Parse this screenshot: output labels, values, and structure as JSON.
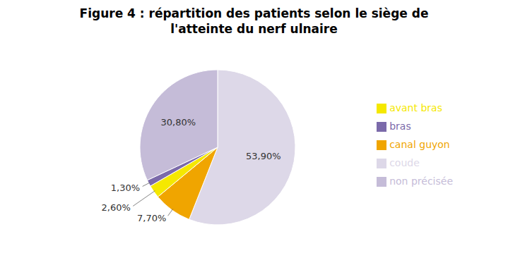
{
  "chart_data": {
    "type": "pie",
    "title": "Figure 4 : répartition des patients selon le siège de\nl'atteinte du nerf ulnaire",
    "categories": [
      "coude",
      "canal guyon",
      "avant bras",
      "bras",
      "non précisée"
    ],
    "values": [
      53.9,
      7.7,
      2.6,
      1.3,
      30.8
    ],
    "value_labels": [
      "53,90%",
      "7,70%",
      "2,60%",
      "1,30%",
      "30,80%"
    ],
    "colors": [
      "#ddd8e8",
      "#f0a500",
      "#f5e800",
      "#7b6aaa",
      "#c5bcd8"
    ],
    "legend": "right"
  }
}
